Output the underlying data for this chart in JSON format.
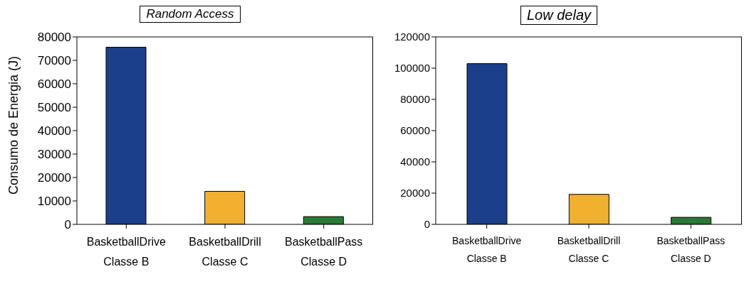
{
  "chart_data": [
    {
      "type": "bar",
      "title": "Random Access",
      "ylabel": "Consumo de Energia (J)",
      "categories": [
        "BasketballDrive\nClasse B",
        "BasketballDrill\nClasse C",
        "BasketballPass\nClasse D"
      ],
      "values": [
        75600,
        14100,
        3300
      ],
      "colors": [
        "#1c3f8c",
        "#f0b030",
        "#2a7a36"
      ],
      "ylim": [
        0,
        80000
      ],
      "yticks": [
        0,
        10000,
        20000,
        30000,
        40000,
        50000,
        60000,
        70000,
        80000
      ]
    },
    {
      "type": "bar",
      "title": "Low delay",
      "categories": [
        "BasketballDrive\nClasse B",
        "BasketballDrill\nClasse C",
        "BasketballPass\nClasse D"
      ],
      "values": [
        102900,
        19200,
        4500
      ],
      "colors": [
        "#1c3f8c",
        "#f0b030",
        "#2a7a36"
      ],
      "ylim": [
        0,
        120000
      ],
      "yticks": [
        0,
        20000,
        40000,
        60000,
        80000,
        100000,
        120000
      ]
    }
  ]
}
